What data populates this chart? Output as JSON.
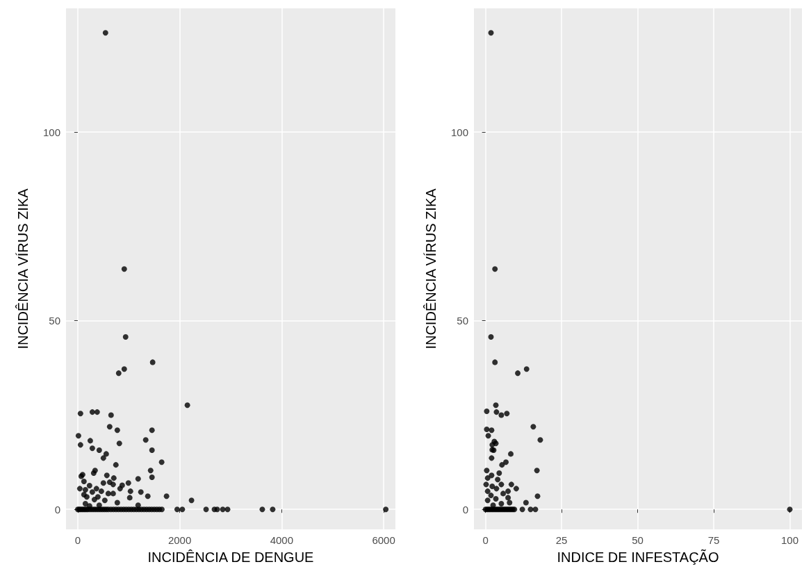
{
  "chart_data": [
    {
      "type": "scatter",
      "xlabel": "INCIDÊNCIA DE DENGUE",
      "ylabel": "INCIDÊNCIA VÍRUS ZIKA",
      "color": "#000000",
      "marker": "circle",
      "grid": true,
      "xlim": [
        -230,
        6230
      ],
      "xticks": [
        0,
        2000,
        4000,
        6000
      ],
      "ylim": [
        -5.3,
        132.8
      ],
      "yticks": [
        0,
        50,
        100
      ],
      "x": [
        544,
        912,
        939,
        912,
        803,
        1469,
        2150,
        54,
        286,
        381,
        653,
        626,
        776,
        1456,
        14,
        245,
        1333,
        54,
        286,
        816,
        422,
        1456,
        558,
        503,
        748,
        1646,
        340,
        313,
        1429,
        68,
        95,
        571,
        1456,
        1184,
        707,
        122,
        694,
        626,
        503,
        993,
        231,
        871,
        41,
        150,
        367,
        830,
        1034,
        1238,
        122,
        286,
        463,
        599,
        694,
        177,
        395,
        1020,
        1374,
        1741,
        327,
        531,
        2231,
        150,
        776,
        1184,
        422,
        231,
        0,
        25,
        50,
        80,
        110,
        140,
        170,
        200,
        240,
        280,
        320,
        360,
        400,
        440,
        480,
        520,
        560,
        600,
        650,
        700,
        750,
        800,
        850,
        900,
        950,
        1000,
        1050,
        1100,
        1150,
        1200,
        1250,
        1300,
        1350,
        1400,
        1450,
        1500,
        1550,
        1600,
        1650,
        1950,
        2050,
        2517,
        2680,
        2735,
        2844,
        2939,
        3619,
        3823,
        6041
      ],
      "values": [
        126.3,
        63.7,
        45.7,
        37.2,
        36.1,
        39.0,
        27.6,
        25.4,
        25.8,
        25.8,
        25.0,
        21.9,
        21.0,
        21.0,
        19.5,
        18.2,
        18.4,
        17.1,
        16.2,
        17.5,
        15.7,
        15.7,
        14.7,
        13.6,
        11.8,
        12.5,
        10.3,
        9.6,
        10.3,
        8.8,
        9.2,
        9.0,
        8.5,
        8.1,
        8.3,
        7.4,
        6.6,
        7.2,
        7.0,
        7.0,
        6.3,
        6.4,
        5.5,
        5.2,
        5.5,
        5.5,
        4.8,
        4.6,
        3.9,
        4.6,
        4.8,
        4.2,
        4.2,
        3.3,
        3.3,
        3.1,
        3.5,
        3.5,
        2.6,
        2.4,
        2.4,
        1.5,
        1.8,
        1.1,
        1.1,
        0.9,
        0,
        0,
        0,
        0,
        0,
        0,
        0,
        0,
        0,
        0,
        0,
        0,
        0,
        0,
        0,
        0,
        0,
        0,
        0,
        0,
        0,
        0,
        0,
        0,
        0,
        0,
        0,
        0,
        0,
        0,
        0,
        0,
        0,
        0,
        0,
        0,
        0,
        0,
        0,
        0,
        0,
        0,
        0,
        0,
        0,
        0,
        0,
        0,
        0
      ]
    },
    {
      "type": "scatter",
      "xlabel": "INDICE DE INFESTAÇÃO",
      "ylabel": "INCIDÊNCIA VÍRUS ZIKA",
      "color": "#000000",
      "marker": "circle",
      "grid": true,
      "xlim": [
        -3.8,
        104
      ],
      "xticks": [
        0,
        25,
        50,
        75,
        100
      ],
      "ylim": [
        -5.3,
        132.8
      ],
      "yticks": [
        0,
        50,
        100
      ],
      "x": [
        1.8,
        3.1,
        1.8,
        3.1,
        10.6,
        13.5,
        3.4,
        0.4,
        3.6,
        5.2,
        7.0,
        15.7,
        0.4,
        2.0,
        0.9,
        18.0,
        2.9,
        2.2,
        3.4,
        2.2,
        2.7,
        8.3,
        2.0,
        6.7,
        5.4,
        16.9,
        0.4,
        4.5,
        2.0,
        0.7,
        4.0,
        0.2,
        5.2,
        8.5,
        10.1,
        2.2,
        3.6,
        0.7,
        7.4,
        5.8,
        17.1,
        1.8,
        7.4,
        3.4,
        0.7,
        7.9,
        13.3,
        5.2,
        2.5,
        0,
        0.5,
        1,
        1.5,
        2,
        2.5,
        3,
        3.5,
        4,
        4.5,
        5,
        5.5,
        6,
        6.5,
        7,
        7.5,
        8,
        8.5,
        9,
        9.5,
        12.1,
        14.8,
        16.4,
        100
      ],
      "values": [
        126.3,
        63.7,
        45.7,
        39.0,
        36.1,
        37.2,
        27.6,
        26.0,
        25.8,
        25.0,
        25.4,
        21.9,
        21.2,
        21.0,
        19.5,
        18.4,
        18.0,
        17.1,
        17.5,
        15.8,
        15.7,
        14.7,
        13.6,
        12.5,
        11.8,
        10.3,
        10.3,
        9.6,
        9.0,
        8.3,
        7.9,
        6.6,
        6.6,
        6.6,
        5.5,
        6.1,
        5.5,
        4.8,
        4.8,
        4.2,
        3.5,
        3.7,
        3.1,
        2.8,
        2.4,
        1.8,
        1.8,
        1.5,
        1.1,
        0,
        0,
        0,
        0,
        0,
        0,
        0,
        0,
        0,
        0,
        0,
        0,
        0,
        0,
        0,
        0,
        0,
        0,
        0,
        0,
        0,
        0,
        0,
        0
      ]
    }
  ]
}
